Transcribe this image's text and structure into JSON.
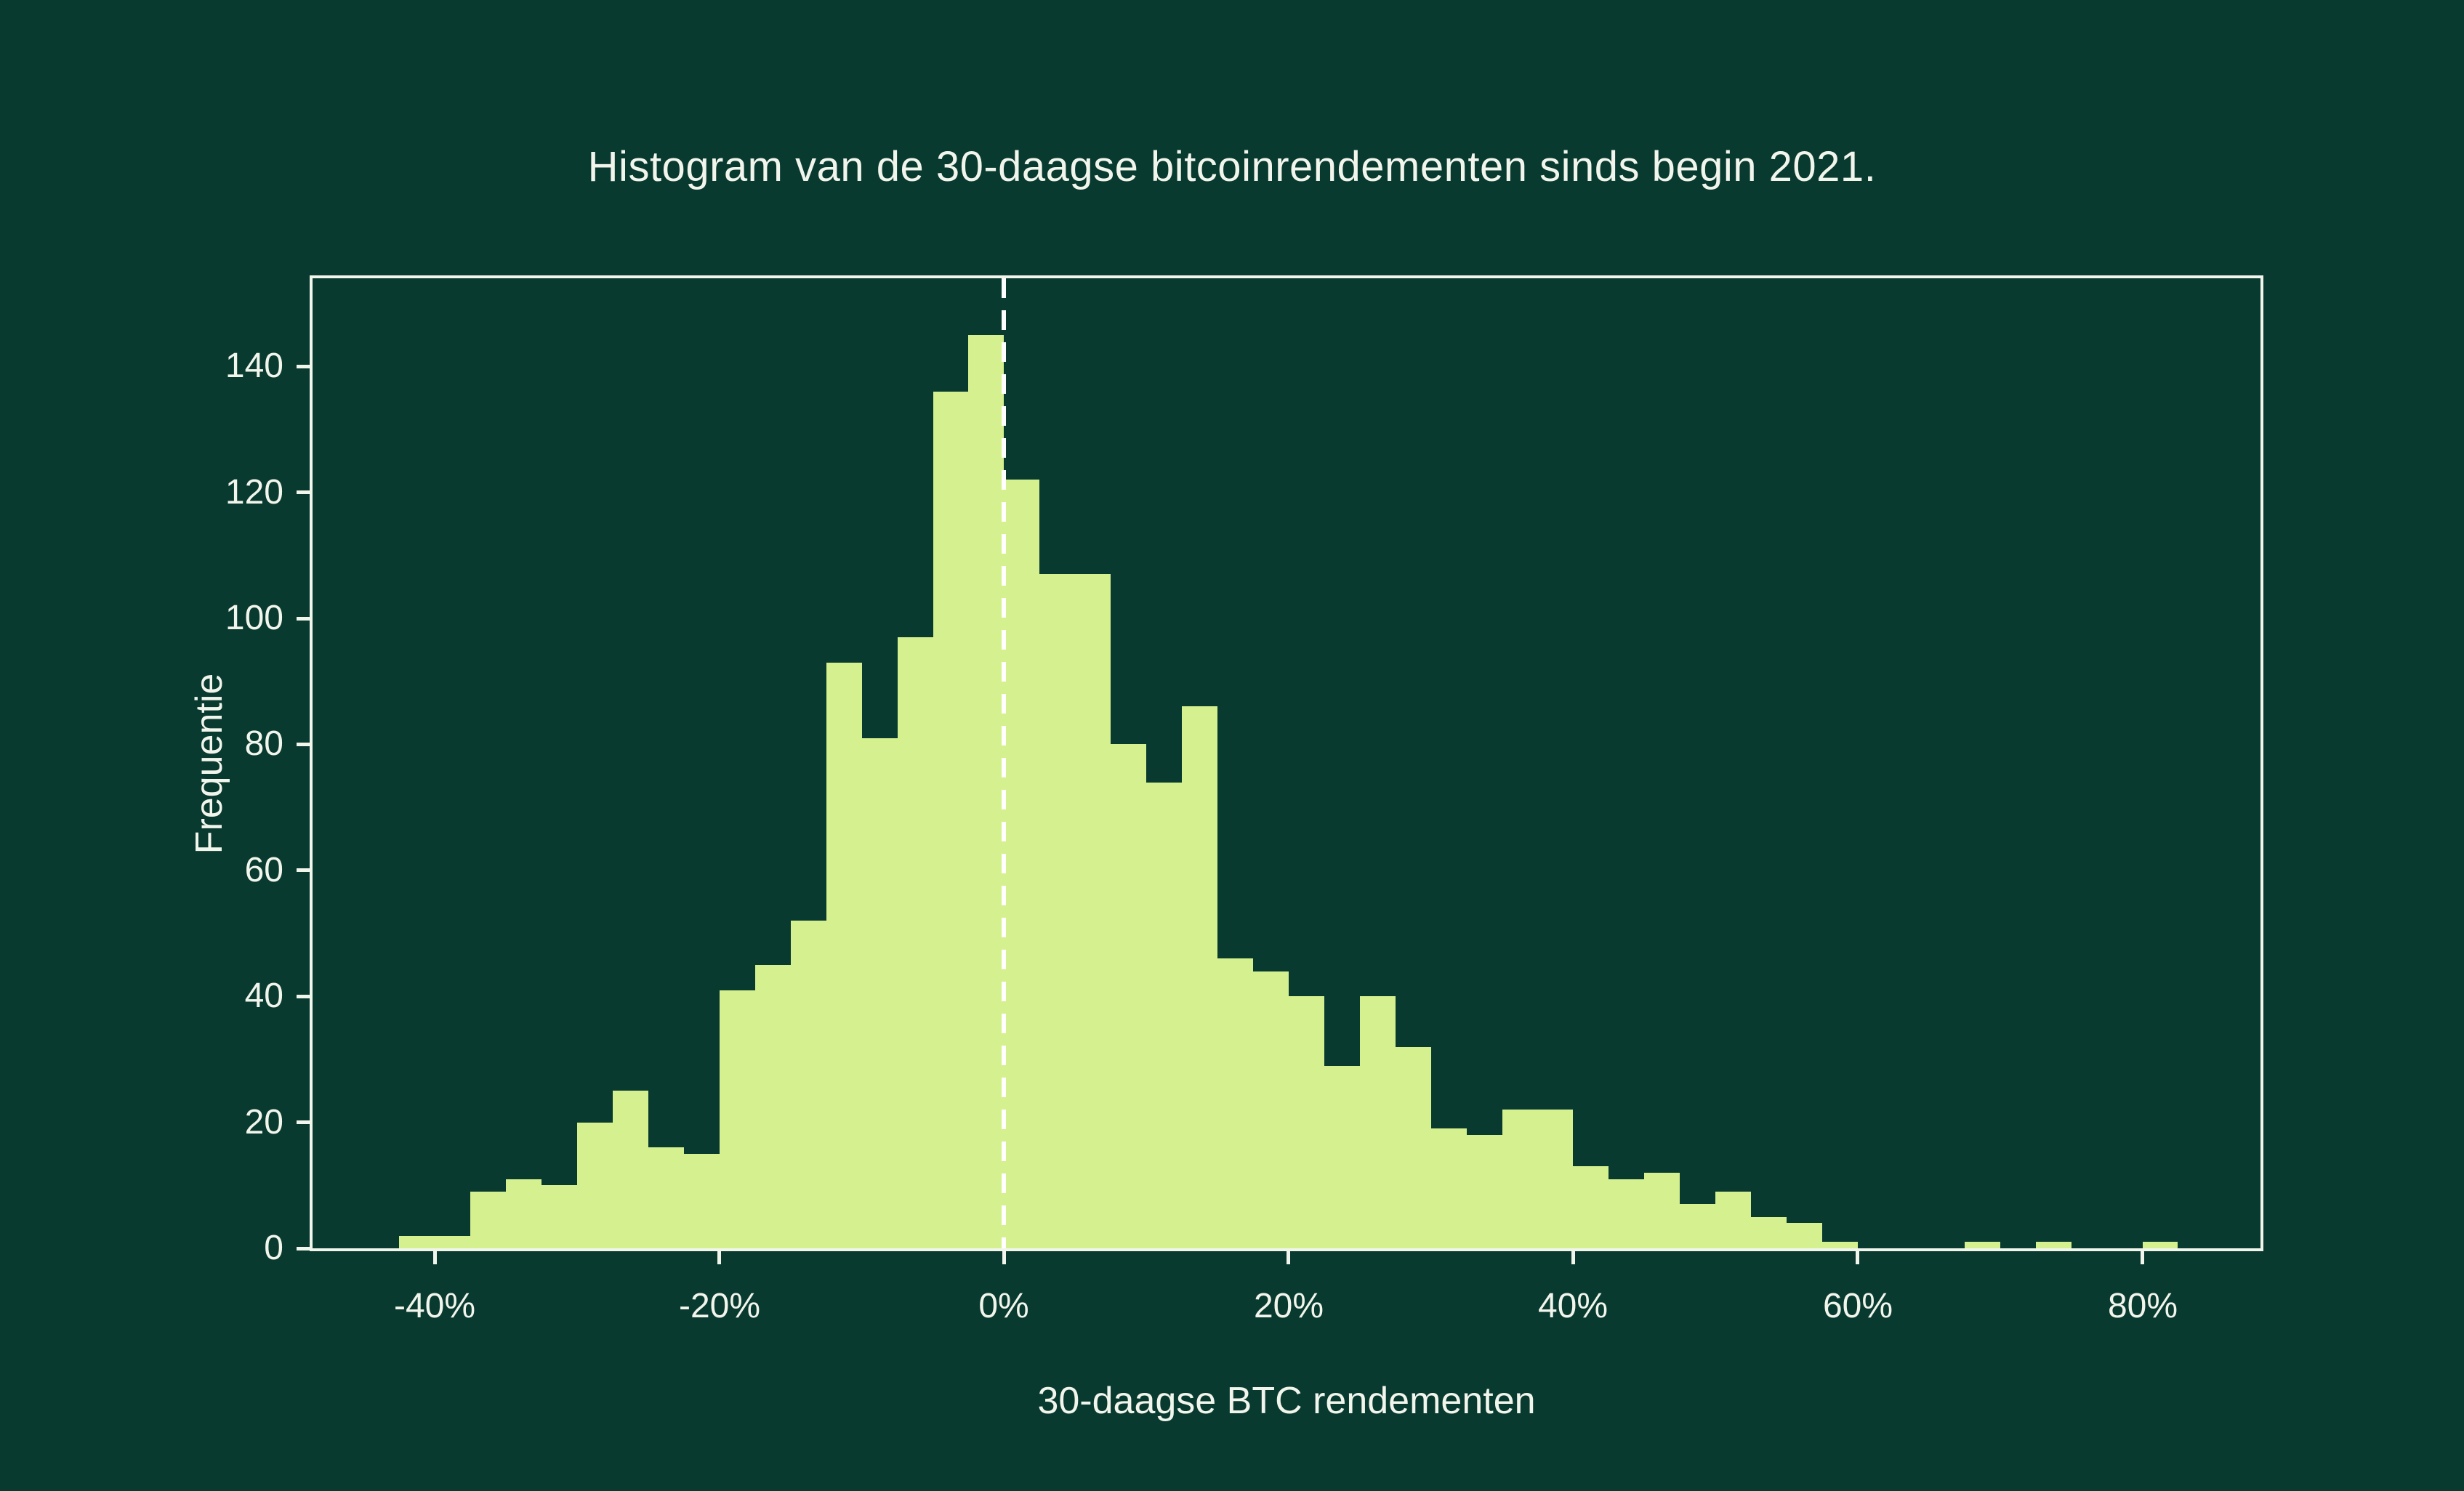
{
  "title": "Histogram van de 30-daagse bitcoinrendementen sinds begin 2021.",
  "x_axis": {
    "label": "30-daagse BTC rendementen",
    "tick_values": [
      -40,
      -20,
      0,
      20,
      40,
      60,
      80
    ],
    "tick_labels": [
      "-40%",
      "-20%",
      "0%",
      "20%",
      "40%",
      "60%",
      "80%"
    ]
  },
  "y_axis": {
    "label": "Frequentie",
    "tick_values": [
      0,
      20,
      40,
      60,
      80,
      100,
      120,
      140
    ],
    "tick_labels": [
      "0",
      "20",
      "40",
      "60",
      "80",
      "100",
      "120",
      "140"
    ]
  },
  "chart_data": {
    "type": "bar",
    "subtype": "histogram",
    "title": "Histogram van de 30-daagse bitcoinrendementen sinds begin 2021.",
    "xlabel": "30-daagse BTC rendementen",
    "ylabel": "Frequentie",
    "bin_start_pct": -42.5,
    "bin_width_pct": 2.5,
    "values": [
      2,
      2,
      9,
      11,
      10,
      20,
      25,
      16,
      15,
      41,
      45,
      52,
      93,
      81,
      97,
      136,
      145,
      122,
      107,
      107,
      80,
      74,
      86,
      46,
      44,
      40,
      29,
      40,
      32,
      19,
      18,
      22,
      22,
      13,
      11,
      12,
      7,
      9,
      5,
      4,
      1,
      0,
      0,
      0,
      1,
      0,
      1,
      0,
      0,
      1
    ],
    "xlim": [
      -48.6,
      88.3
    ],
    "ylim": [
      0,
      154
    ],
    "x_ticks": [
      -40,
      -20,
      0,
      20,
      40,
      60,
      80
    ],
    "y_ticks": [
      0,
      20,
      40,
      60,
      80,
      100,
      120,
      140
    ],
    "vline_x": 0,
    "vline_style": "dashed",
    "grid": false,
    "legend": "none",
    "colors": {
      "background": "#083a30",
      "bar": "#d5f08e",
      "axis": "#f2f5ec",
      "text": "#f2f5ec",
      "zero_line": "#ffffff"
    }
  }
}
